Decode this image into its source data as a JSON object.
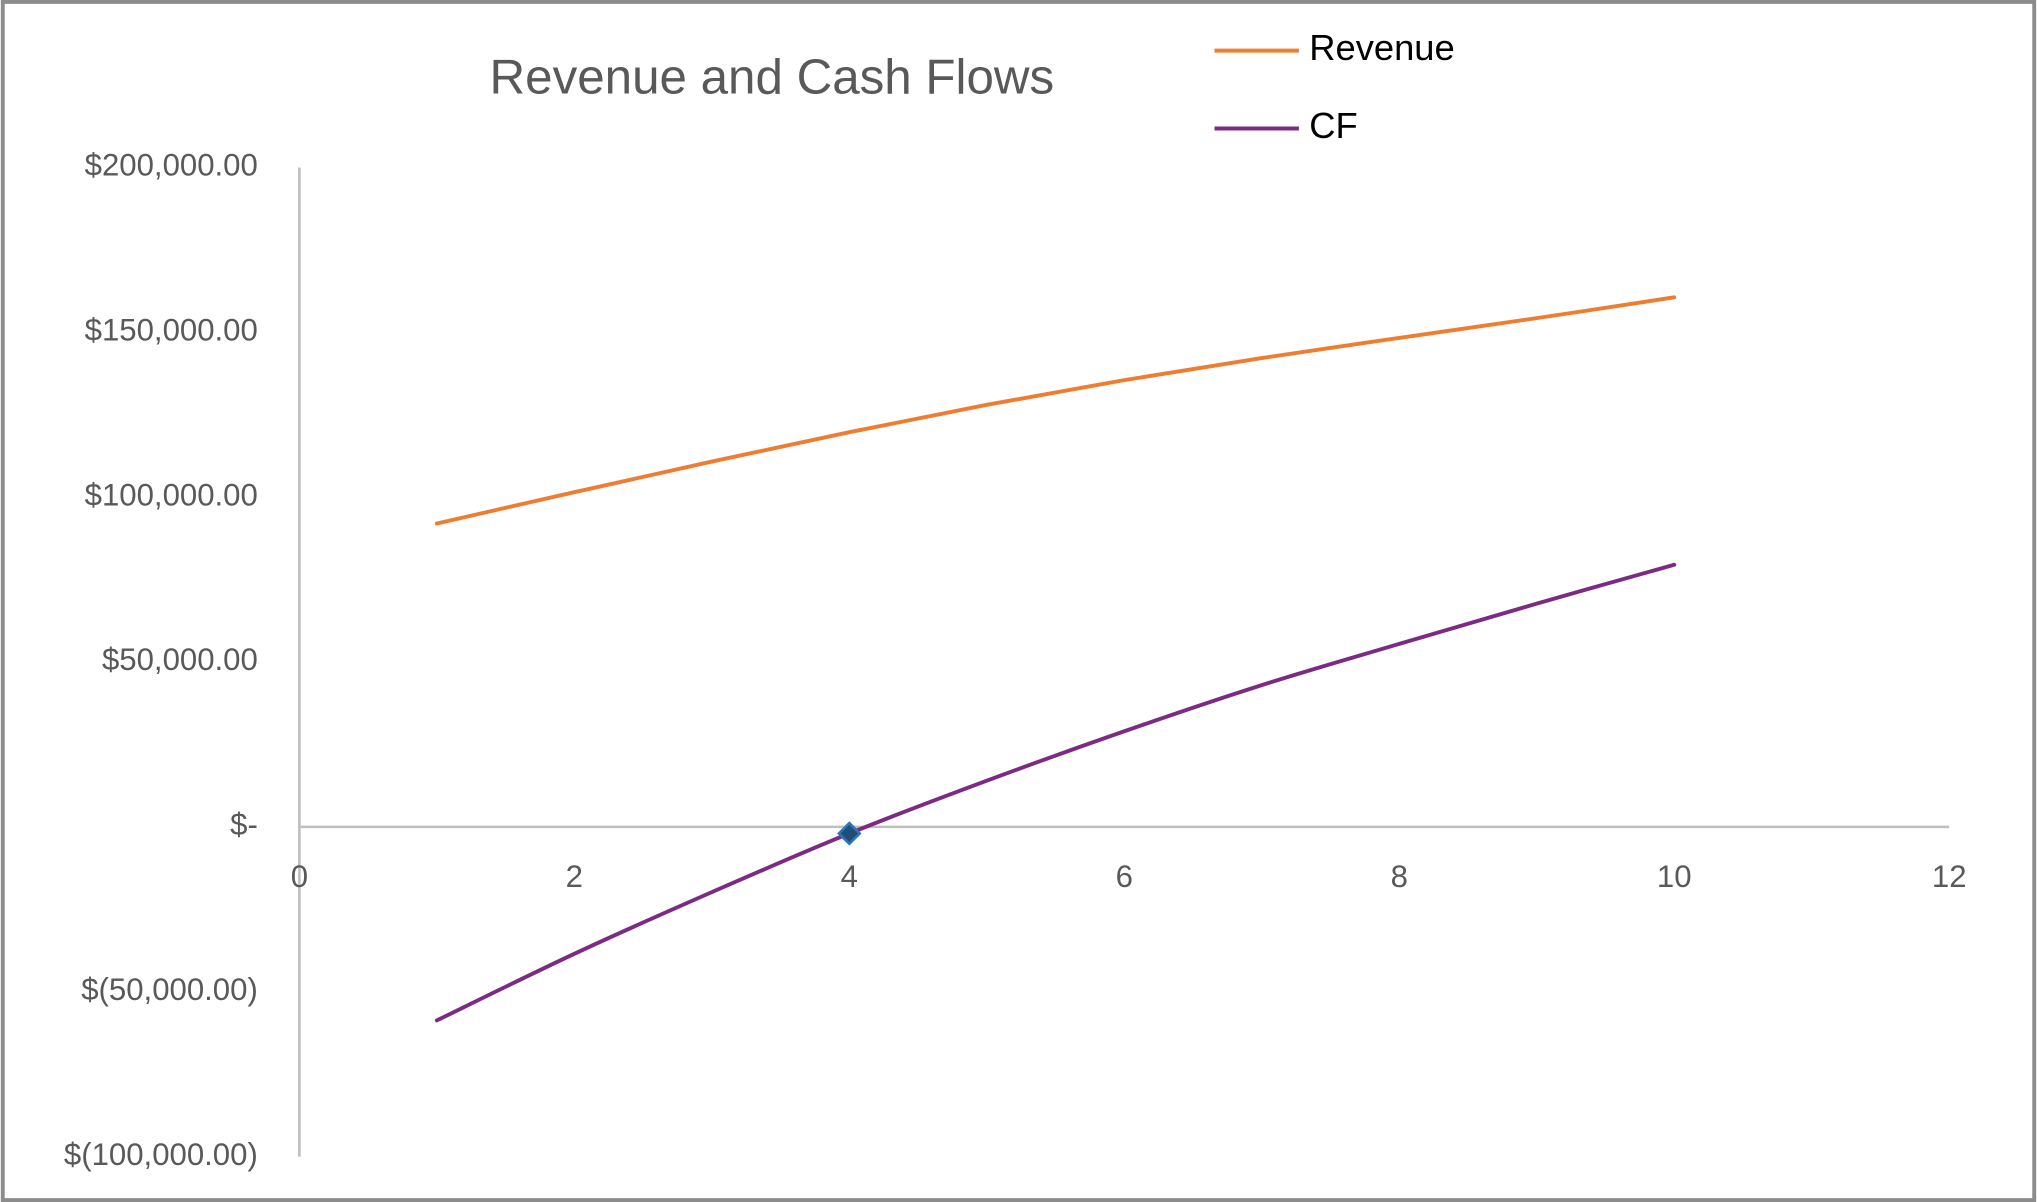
{
  "chart_data": {
    "type": "line",
    "title": "Revenue and Cash Flows",
    "x": [
      1,
      2,
      3,
      4,
      5,
      6,
      7,
      8,
      9,
      10
    ],
    "series": [
      {
        "name": "Revenue",
        "color": "#ed7d31",
        "values": [
          92000,
          101500,
          110800,
          119700,
          128000,
          135500,
          142200,
          148300,
          154300,
          160600
        ]
      },
      {
        "name": "CF",
        "color": "#7b2c82",
        "values": [
          -58700,
          -38500,
          -19800,
          -2000,
          14000,
          29000,
          43000,
          55500,
          67700,
          79500
        ]
      }
    ],
    "highlight": {
      "x": 4,
      "y": -2000,
      "color": "#1f4e79"
    },
    "xlim": [
      0,
      12
    ],
    "xticks": [
      0,
      2,
      4,
      6,
      8,
      10,
      12
    ],
    "ylim": [
      -100000,
      200000
    ],
    "yticks": [
      {
        "value": -100000,
        "label": "$(100,000.00)"
      },
      {
        "value": -50000,
        "label": "$(50,000.00)"
      },
      {
        "value": 0,
        "label": "$-"
      },
      {
        "value": 50000,
        "label": "$50,000.00"
      },
      {
        "value": 100000,
        "label": "$100,000.00"
      },
      {
        "value": 150000,
        "label": "$150,000.00"
      },
      {
        "value": 200000,
        "label": "$200,000.00"
      }
    ],
    "grid": false,
    "smooth": true,
    "legend": "top-right"
  }
}
